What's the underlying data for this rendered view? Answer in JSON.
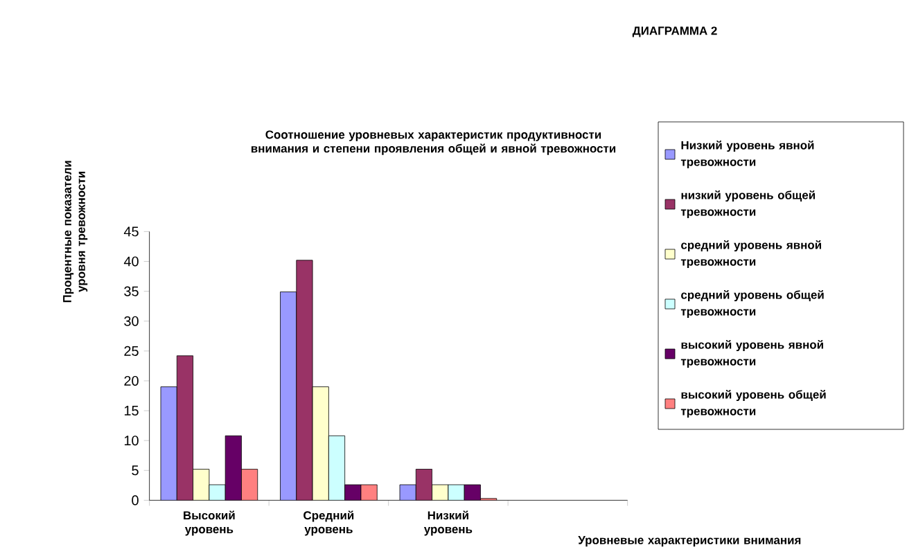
{
  "chart_data": {
    "type": "bar",
    "title": "Соотношение уровневых характеристик продуктивности внимания и степени проявления общей и явной тревожности",
    "annotations": [
      "ДИАГРАММА 2"
    ],
    "xlabel": "Уровневые характеристики внимания",
    "ylabel": "Процентные показатели уровня тревожности",
    "categories": [
      "Высокий уровень",
      "Средний уровень",
      "Низкий уровень",
      null
    ],
    "series": [
      {
        "name": "Низкий уровень явной тревожности",
        "color": "#9999ff",
        "values": [
          19,
          34.9,
          2.6,
          null
        ]
      },
      {
        "name": "низкий уровень общей тревожности",
        "color": "#993366",
        "values": [
          24.2,
          40.2,
          5.2,
          null
        ]
      },
      {
        "name": "средний уровень явной тревожности",
        "color": "#ffffcc",
        "values": [
          5.2,
          19,
          2.6,
          null
        ]
      },
      {
        "name": "средний уровень общей тревожности",
        "color": "#ccffff",
        "values": [
          2.6,
          10.8,
          2.6,
          null
        ]
      },
      {
        "name": "высокий уровень явной тревожности",
        "color": "#660066",
        "values": [
          10.8,
          2.6,
          2.6,
          null
        ]
      },
      {
        "name": "высокий уровень общей тревожности",
        "color": "#ff8080",
        "values": [
          5.2,
          2.6,
          0.3,
          null
        ]
      }
    ],
    "ylim": [
      0,
      45
    ],
    "yticks": [
      0,
      5,
      10,
      15,
      20,
      25,
      30,
      35,
      40,
      45
    ],
    "legend": "right"
  }
}
